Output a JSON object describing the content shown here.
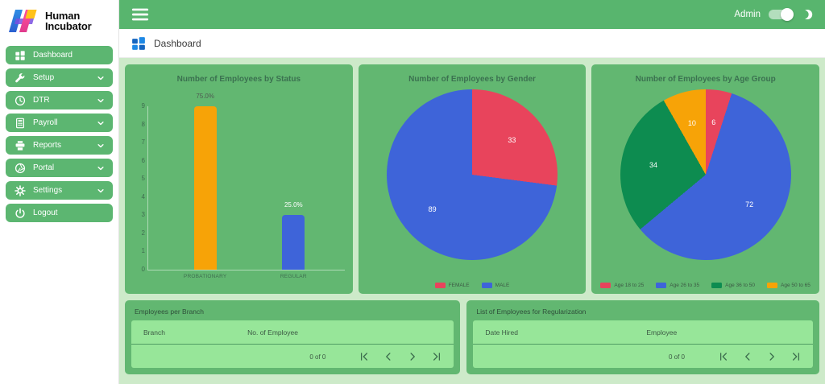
{
  "brand": {
    "line1": "Human",
    "line2": "Incubator"
  },
  "topbar": {
    "user_label": "Admin"
  },
  "page_header": {
    "title": "Dashboard"
  },
  "sidebar": {
    "items": [
      {
        "id": "dashboard",
        "label": "Dashboard",
        "icon": "grid",
        "expandable": false
      },
      {
        "id": "setup",
        "label": "Setup",
        "icon": "wrench",
        "expandable": true
      },
      {
        "id": "dtr",
        "label": "DTR",
        "icon": "clock",
        "expandable": true
      },
      {
        "id": "payroll",
        "label": "Payroll",
        "icon": "calculator",
        "expandable": true
      },
      {
        "id": "reports",
        "label": "Reports",
        "icon": "printer",
        "expandable": true
      },
      {
        "id": "portal",
        "label": "Portal",
        "icon": "aperture",
        "expandable": true
      },
      {
        "id": "settings",
        "label": "Settings",
        "icon": "gear",
        "expandable": true
      },
      {
        "id": "logout",
        "label": "Logout",
        "icon": "power",
        "expandable": false
      }
    ]
  },
  "chart_data": [
    {
      "id": "status",
      "type": "bar",
      "title": "Number of Employees by Status",
      "categories": [
        "PROBATIONARY",
        "REGULAR"
      ],
      "values": [
        9,
        3
      ],
      "bar_labels": [
        "75.0%",
        "25.0%"
      ],
      "bar_label_colors": [
        "#4f5b52",
        "#ffffff"
      ],
      "colors": [
        "#f7a307",
        "#3e64d9"
      ],
      "ylim": [
        0,
        9
      ],
      "yticks": [
        0,
        1,
        2,
        3,
        4,
        5,
        6,
        7,
        8,
        9
      ],
      "legend_position": "none"
    },
    {
      "id": "gender",
      "type": "pie",
      "title": "Number of Employees by Gender",
      "labels": [
        "FEMALE",
        "MALE"
      ],
      "values": [
        33,
        89
      ],
      "colors": [
        "#e8445c",
        "#3e64d9"
      ],
      "legend_position": "bottom"
    },
    {
      "id": "age_group",
      "type": "pie",
      "title": "Number of Employees by Age Group",
      "labels": [
        "Age 18 to 25",
        "Age 26 to 35",
        "Age 36 to 50",
        "Age 50 to 65"
      ],
      "values": [
        6,
        72,
        34,
        10
      ],
      "colors": [
        "#e8445c",
        "#3e64d9",
        "#0d8c50",
        "#f7a307"
      ],
      "legend_position": "bottom"
    }
  ],
  "tables": [
    {
      "id": "branch",
      "title": "Employees per Branch",
      "columns": [
        "Branch",
        "No. of Employee"
      ],
      "rows": [],
      "pagination": {
        "label": "0 of 0"
      }
    },
    {
      "id": "regularization",
      "title": "List of Employees for Regularization",
      "columns": [
        "Date Hired",
        "Employee"
      ],
      "rows": [],
      "pagination": {
        "label": "0 of 0"
      }
    }
  ]
}
